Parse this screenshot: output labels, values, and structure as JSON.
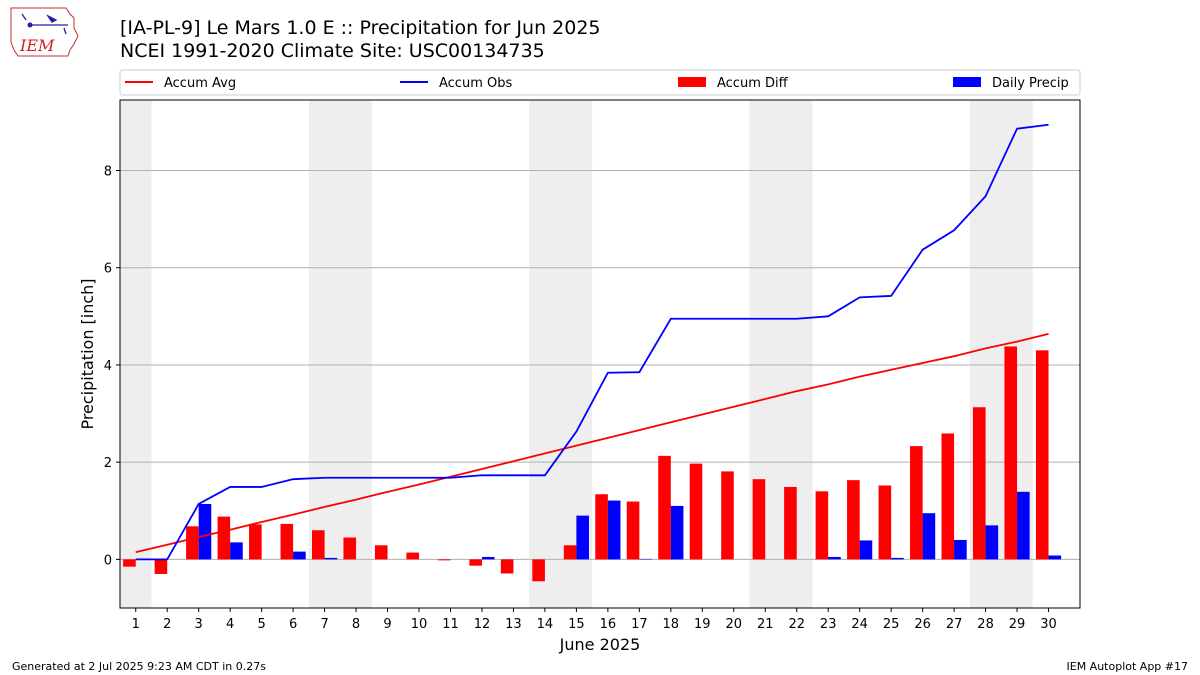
{
  "header": {
    "title_line1": "[IA-PL-9] Le Mars 1.0 E :: Precipitation for Jun 2025",
    "title_line2": "NCEI 1991-2020 Climate Site: USC00134735"
  },
  "logo": {
    "text": "IEM",
    "icon": "iem-iowa-logo"
  },
  "footer": {
    "left": "Generated at 2 Jul 2025 9:23 AM CDT in 0.27s",
    "right": "IEM Autoplot App #17"
  },
  "colors": {
    "avg": "#ff0000",
    "obs": "#0000ff",
    "diff": "#ff0000",
    "daily": "#0000ff",
    "weekend": "#eeeeee",
    "grid": "#b0b0b0"
  },
  "chart_data": {
    "type": "bar",
    "xlabel": "June 2025",
    "ylabel": "Precipitation [inch]",
    "xlim": [
      0.5,
      31.0
    ],
    "ylim": [
      -1.0,
      9.45
    ],
    "yticks": [
      0,
      2,
      4,
      6,
      8
    ],
    "grid": "y",
    "legend_position": "top",
    "x": [
      1,
      2,
      3,
      4,
      5,
      6,
      7,
      8,
      9,
      10,
      11,
      12,
      13,
      14,
      15,
      16,
      17,
      18,
      19,
      20,
      21,
      22,
      23,
      24,
      25,
      26,
      27,
      28,
      29,
      30
    ],
    "weekend_spans": [
      [
        0.5,
        1.5
      ],
      [
        6.5,
        8.5
      ],
      [
        13.5,
        15.5
      ],
      [
        20.5,
        22.5
      ],
      [
        27.5,
        29.5
      ]
    ],
    "series": [
      {
        "name": "Accum Avg",
        "kind": "line",
        "color": "#ff0000",
        "values": [
          0.15,
          0.3,
          0.46,
          0.61,
          0.77,
          0.92,
          1.08,
          1.23,
          1.39,
          1.54,
          1.7,
          1.86,
          2.02,
          2.18,
          2.34,
          2.5,
          2.66,
          2.82,
          2.98,
          3.14,
          3.3,
          3.46,
          3.6,
          3.76,
          3.9,
          4.04,
          4.18,
          4.34,
          4.48,
          4.64
        ]
      },
      {
        "name": "Accum Obs",
        "kind": "line",
        "color": "#0000ff",
        "values": [
          0,
          0,
          1.14,
          1.49,
          1.49,
          1.65,
          1.68,
          1.68,
          1.68,
          1.68,
          1.68,
          1.73,
          1.73,
          1.73,
          2.63,
          3.84,
          3.85,
          4.95,
          4.95,
          4.95,
          4.95,
          4.95,
          5.0,
          5.39,
          5.42,
          6.37,
          6.77,
          7.47,
          8.86,
          8.94
        ]
      },
      {
        "name": "Accum Diff",
        "kind": "bar",
        "color": "#ff0000",
        "offset": -0.2,
        "width": 0.4,
        "values": [
          -0.15,
          -0.3,
          0.68,
          0.88,
          0.72,
          0.73,
          0.6,
          0.45,
          0.29,
          0.14,
          -0.02,
          -0.13,
          -0.29,
          -0.45,
          0.29,
          1.34,
          1.19,
          2.13,
          1.97,
          1.81,
          1.65,
          1.49,
          1.4,
          1.63,
          1.52,
          2.33,
          2.59,
          3.13,
          4.38,
          4.3
        ]
      },
      {
        "name": "Daily Precip",
        "kind": "bar",
        "color": "#0000ff",
        "offset": 0.2,
        "width": 0.4,
        "values": [
          0,
          0,
          1.14,
          0.35,
          0,
          0.16,
          0.03,
          0,
          0,
          0,
          0,
          0.05,
          0,
          0,
          0.9,
          1.21,
          0.01,
          1.1,
          0,
          0,
          0,
          0,
          0.05,
          0.39,
          0.03,
          0.95,
          0.4,
          0.7,
          1.39,
          0.08
        ]
      }
    ]
  }
}
